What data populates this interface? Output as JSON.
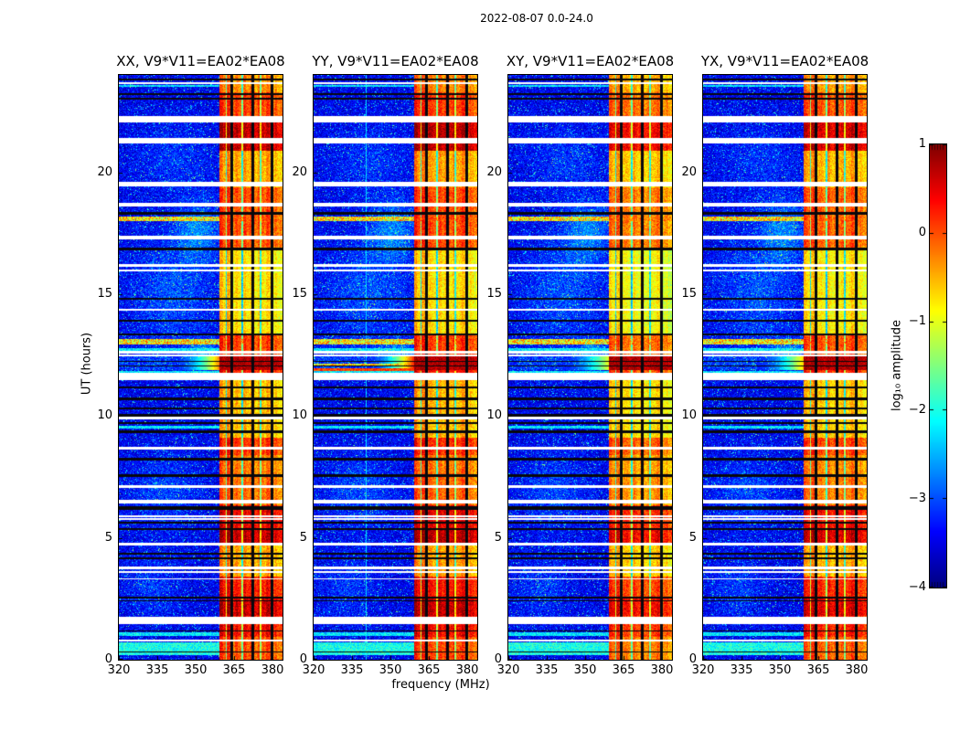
{
  "figure": {
    "suptitle": "2022-08-07 0.0-24.0",
    "background": "#ffffff",
    "text_color": "#000000"
  },
  "chart_data": {
    "type": "heatmap",
    "title": "2022-08-07 0.0-24.0",
    "xlabel": "frequency (MHz)",
    "ylabel": "UT (hours)",
    "baseline": "V9*V11=EA02*EA08",
    "x_range_mhz": [
      320,
      384
    ],
    "y_range_hours": [
      0,
      24
    ],
    "x_ticks": [
      320,
      335,
      350,
      365,
      380
    ],
    "y_ticks": [
      0,
      5,
      10,
      15,
      20
    ],
    "panels": [
      {
        "label": "XX",
        "title": "XX, V9*V11=EA02*EA08"
      },
      {
        "label": "YY",
        "title": "YY, V9*V11=EA02*EA08"
      },
      {
        "label": "XY",
        "title": "XY, V9*V11=EA02*EA08"
      },
      {
        "label": "YX",
        "title": "YX, V9*V11=EA02*EA08"
      }
    ],
    "colorbar": {
      "label": "log₁₀ amplitude",
      "tick_labels": [
        "1",
        "0",
        "−1",
        "−2",
        "−3",
        "−4"
      ],
      "tick_values": [
        1,
        0,
        -1,
        -2,
        -3,
        -4
      ],
      "range": [
        -4,
        1
      ],
      "colormap": "jet"
    },
    "rfi_band": {
      "start_mhz": 359.2,
      "end_mhz": 384,
      "strong_separators_mhz": [
        364.3,
        372.3,
        379.8
      ],
      "minor_separators_mhz": [
        362.0,
        368.3,
        375.4
      ],
      "block_bias": [
        [
          359.2,
          364.0,
          0.18
        ],
        [
          364.8,
          372.0,
          0.02
        ],
        [
          372.8,
          379.5,
          0.06
        ],
        [
          380.2,
          384.0,
          -0.15
        ]
      ]
    },
    "red_band": {
      "t0": 11.88,
      "t1": 12.45
    },
    "hot_profile": [
      [
        23.3,
        24.0,
        0.7
      ],
      [
        22.3,
        23.3,
        0.8
      ],
      [
        20.9,
        22.3,
        0.96
      ],
      [
        19.4,
        20.9,
        0.66
      ],
      [
        16.9,
        19.4,
        0.78
      ],
      [
        13.4,
        16.9,
        0.58
      ],
      [
        12.45,
        13.4,
        0.8
      ],
      [
        11.88,
        12.45,
        1.0
      ],
      [
        11.6,
        11.88,
        0.85
      ],
      [
        9.1,
        11.6,
        0.63
      ],
      [
        8.4,
        9.1,
        0.82
      ],
      [
        7.5,
        8.4,
        0.72
      ],
      [
        6.35,
        7.5,
        0.74
      ],
      [
        5.4,
        6.35,
        0.9
      ],
      [
        4.7,
        5.4,
        0.96
      ],
      [
        3.4,
        4.7,
        0.66
      ],
      [
        2.6,
        3.4,
        0.86
      ],
      [
        1.8,
        2.6,
        0.95
      ],
      [
        0.95,
        1.8,
        0.88
      ],
      [
        0.0,
        0.95,
        0.78
      ]
    ],
    "stripes_white": [
      {
        "t": 23.66,
        "h": 0.08
      },
      {
        "t": 22.17,
        "h": 0.26
      },
      {
        "t": 21.3,
        "h": 0.2
      },
      {
        "t": 19.52,
        "h": 0.16
      },
      {
        "t": 18.68,
        "h": 0.16
      },
      {
        "t": 17.33,
        "h": 0.16
      },
      {
        "t": 16.18,
        "h": 0.08
      },
      {
        "t": 15.99,
        "h": 0.07
      },
      {
        "t": 14.35,
        "h": 0.07
      },
      {
        "t": 12.62,
        "h": 0.09
      },
      {
        "t": 12.49,
        "h": 0.07
      },
      {
        "t": 11.63,
        "h": 0.28
      },
      {
        "t": 9.92,
        "h": 0.1
      },
      {
        "t": 8.68,
        "h": 0.14
      },
      {
        "t": 7.12,
        "h": 0.12
      },
      {
        "t": 6.49,
        "h": 0.14
      },
      {
        "t": 5.9,
        "h": 0.07
      },
      {
        "t": 5.78,
        "h": 0.07
      },
      {
        "t": 4.73,
        "h": 0.12
      },
      {
        "t": 3.77,
        "h": 0.09
      },
      {
        "t": 3.61,
        "h": 0.09
      },
      {
        "t": 3.32,
        "h": 0.07
      },
      {
        "t": 1.62,
        "h": 0.3
      },
      {
        "t": 0.78,
        "h": 0.08
      }
    ],
    "stripes_black": [
      {
        "t": 23.82,
        "h": 0.06
      },
      {
        "t": 23.22,
        "h": 0.09
      },
      {
        "t": 23.02,
        "h": 0.09
      },
      {
        "t": 18.32,
        "h": 0.09
      },
      {
        "t": 16.86,
        "h": 0.11
      },
      {
        "t": 14.8,
        "h": 0.07
      },
      {
        "t": 13.9,
        "h": 0.07
      },
      {
        "t": 13.36,
        "h": 0.09
      },
      {
        "t": 12.25,
        "h": 0.06
      },
      {
        "t": 12.05,
        "h": 0.06
      },
      {
        "t": 11.16,
        "h": 0.07
      },
      {
        "t": 10.72,
        "h": 0.11
      },
      {
        "t": 10.32,
        "h": 0.07
      },
      {
        "t": 10.02,
        "h": 0.13
      },
      {
        "t": 9.72,
        "h": 0.07
      },
      {
        "t": 9.36,
        "h": 0.09
      },
      {
        "t": 8.22,
        "h": 0.11
      },
      {
        "t": 7.56,
        "h": 0.11
      },
      {
        "t": 6.22,
        "h": 0.13
      },
      {
        "t": 5.62,
        "h": 0.09
      },
      {
        "t": 5.36,
        "h": 0.09
      },
      {
        "t": 4.35,
        "h": 0.08
      },
      {
        "t": 4.15,
        "h": 0.07
      },
      {
        "t": 2.56,
        "h": 0.09
      },
      {
        "t": 2.42,
        "h": 0.07
      },
      {
        "t": 1.18,
        "h": 0.07
      },
      {
        "t": 0.32,
        "h": 0.05
      }
    ],
    "bright_rows": [
      {
        "t": 0.45,
        "h": 0.55,
        "tone": "cyan2"
      },
      {
        "t": 1.05,
        "h": 0.12,
        "tone": "cyan"
      },
      {
        "t": 9.55,
        "h": 0.1,
        "tone": "cyan"
      },
      {
        "t": 11.8,
        "h": 0.12,
        "tone": "cyan"
      },
      {
        "t": 12.72,
        "h": 0.12,
        "tone": "cyan"
      },
      {
        "t": 13.05,
        "h": 0.25,
        "tone": "orange"
      },
      {
        "t": 18.1,
        "h": 0.18,
        "tone": "orange"
      },
      {
        "t": 23.55,
        "h": 0.08,
        "tone": "cyan"
      }
    ],
    "blobs": [
      {
        "t": 17.6,
        "f": 351,
        "rt": 1.3,
        "rf": 9,
        "amp": 0.7
      },
      {
        "t": 15.0,
        "f": 341,
        "rt": 2.2,
        "rf": 16,
        "amp": 0.45
      },
      {
        "t": 20.6,
        "f": 342,
        "rt": 1.4,
        "rf": 14,
        "amp": 0.3
      },
      {
        "t": 6.9,
        "f": 338,
        "rt": 1.6,
        "rf": 13,
        "amp": 0.4
      },
      {
        "t": 2.9,
        "f": 333,
        "rt": 1.2,
        "rf": 10,
        "amp": 0.35
      },
      {
        "t": 12.6,
        "f": 353,
        "rt": 0.5,
        "rf": 7,
        "amp": 0.7
      }
    ],
    "panel_params": {
      "level_scale": [
        1.0,
        1.02,
        0.93,
        0.98
      ],
      "left_gradient": [
        0.85,
        1.0,
        0.65,
        0.75
      ]
    },
    "extra": {
      "yy_rows": [
        {
          "t": 11.9,
          "h": 0.14,
          "tone": "red"
        },
        {
          "t": 12.1,
          "h": 0.1,
          "tone": "orange"
        }
      ],
      "yy_vline_mhz": 340.4
    }
  }
}
